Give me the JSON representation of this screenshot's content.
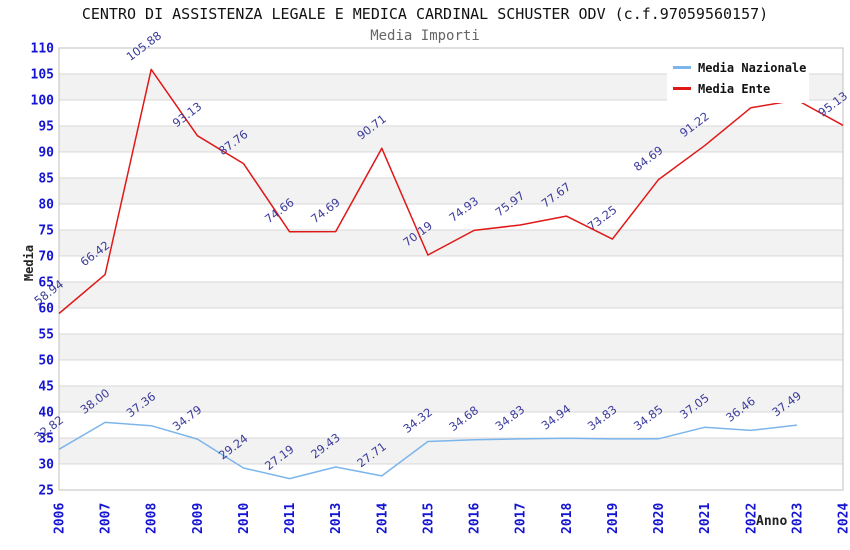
{
  "header": {
    "title": "CENTRO DI ASSISTENZA LEGALE E MEDICA CARDINAL SCHUSTER ODV (c.f.97059560157)",
    "subtitle": "Media Importi"
  },
  "legend": {
    "items": [
      {
        "label": "Media Nazionale",
        "color": "#7cb5ec"
      },
      {
        "label": "Media Ente",
        "color": "#e01818"
      }
    ]
  },
  "colors": {
    "tick_label": "#1414d2",
    "data_label": "#3c3c9c",
    "grid_line": "#d8d8d8",
    "band_fill": "#f2f2f2",
    "plot_border": "#c0c0c0",
    "subtitle": "#666666"
  },
  "chart_data": {
    "type": "line",
    "title": "CENTRO DI ASSISTENZA LEGALE E MEDICA CARDINAL SCHUSTER ODV (c.f.97059560157)",
    "subtitle": "Media Importi",
    "xlabel": "Anno",
    "ylabel": "Media",
    "ylim": [
      25,
      110
    ],
    "ytick_step": 5,
    "grid": true,
    "band_fill_alternating": true,
    "legend_position": "top-right",
    "categories": [
      "2006",
      "2007",
      "2008",
      "2009",
      "2010",
      "2011",
      "2013",
      "2014",
      "2015",
      "2016",
      "2017",
      "2018",
      "2019",
      "2020",
      "2021",
      "2022",
      "2023",
      "2024"
    ],
    "series": [
      {
        "name": "Media Nazionale",
        "color": "#7cb5ec",
        "values": [
          32.82,
          38.0,
          37.36,
          34.79,
          29.24,
          27.19,
          29.43,
          27.71,
          34.32,
          34.68,
          34.83,
          34.94,
          34.83,
          34.85,
          37.05,
          36.46,
          37.49,
          null
        ]
      },
      {
        "name": "Media Ente",
        "color": "#e01818",
        "values": [
          58.94,
          66.42,
          105.88,
          93.13,
          87.76,
          74.66,
          74.69,
          90.71,
          70.19,
          74.93,
          75.97,
          77.67,
          73.25,
          84.69,
          91.22,
          98.5,
          100.0,
          95.13
        ]
      }
    ]
  }
}
